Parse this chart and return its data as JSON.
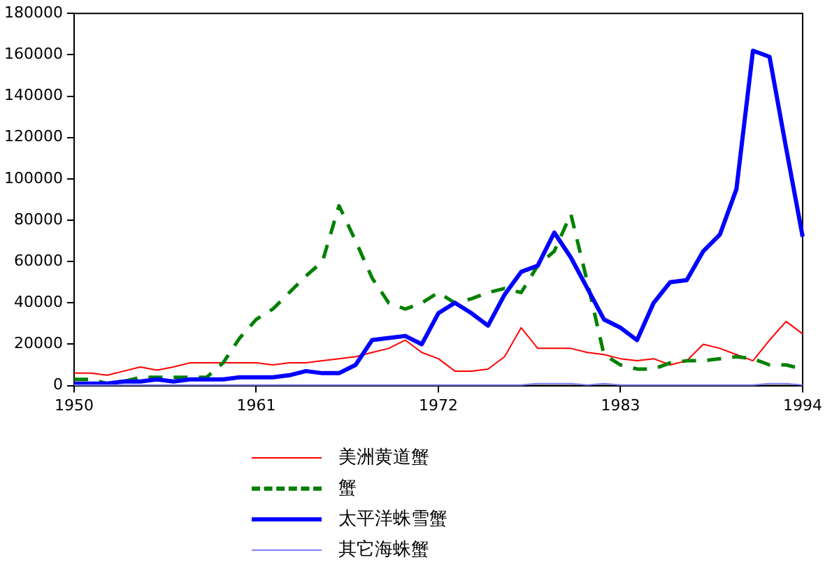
{
  "chart_data": {
    "type": "line",
    "x": [
      1950,
      1951,
      1952,
      1953,
      1954,
      1955,
      1956,
      1957,
      1958,
      1959,
      1960,
      1961,
      1962,
      1963,
      1964,
      1965,
      1966,
      1967,
      1968,
      1969,
      1970,
      1971,
      1972,
      1973,
      1974,
      1975,
      1976,
      1977,
      1978,
      1979,
      1980,
      1981,
      1982,
      1983,
      1984,
      1985,
      1986,
      1987,
      1988,
      1989,
      1990,
      1991,
      1992,
      1993,
      1994
    ],
    "series": [
      {
        "name": "美洲黄道蟹",
        "color": "#ff0000",
        "line_style": "solid",
        "values": [
          6000,
          6000,
          5000,
          7000,
          9000,
          7500,
          9000,
          11000,
          11000,
          11000,
          11000,
          11000,
          10000,
          11000,
          11000,
          12000,
          13000,
          14000,
          16000,
          18000,
          22000,
          16000,
          13000,
          7000,
          7000,
          8000,
          14000,
          28000,
          18000,
          18000,
          18000,
          16000,
          15000,
          13000,
          12000,
          13000,
          10000,
          12000,
          20000,
          18000,
          15000,
          12000,
          22000,
          31000,
          25000
        ]
      },
      {
        "name": "蟹",
        "color": "#008000",
        "line_style": "dashed",
        "values": [
          3000,
          3000,
          1000,
          2000,
          4000,
          4000,
          4000,
          4000,
          4000,
          11000,
          23000,
          32000,
          37000,
          45000,
          53000,
          60000,
          87000,
          70000,
          52000,
          40000,
          37000,
          40000,
          45000,
          40000,
          42000,
          45000,
          47000,
          45000,
          58000,
          65000,
          83000,
          50000,
          15000,
          10000,
          8000,
          8000,
          11000,
          12000,
          12000,
          13000,
          14000,
          13000,
          10000,
          10000,
          8000
        ]
      },
      {
        "name": "太平洋蛛雪蟹",
        "color": "#0000ff",
        "line_style": "solid",
        "values": [
          1000,
          1000,
          1000,
          2000,
          2000,
          3000,
          2000,
          3000,
          3000,
          3000,
          4000,
          4000,
          4000,
          5000,
          7000,
          6000,
          6000,
          10000,
          22000,
          23000,
          24000,
          20000,
          35000,
          40000,
          35000,
          29000,
          44000,
          55000,
          58000,
          74000,
          62000,
          47000,
          32000,
          28000,
          22000,
          40000,
          50000,
          51000,
          65000,
          73000,
          95000,
          162000,
          159000,
          115000,
          72000
        ]
      },
      {
        "name": "其它海蛛蟹",
        "color": "#8080ff",
        "line_style": "solid",
        "values": [
          300,
          300,
          300,
          300,
          300,
          300,
          300,
          300,
          300,
          300,
          300,
          300,
          300,
          300,
          300,
          300,
          300,
          300,
          300,
          300,
          300,
          300,
          300,
          300,
          300,
          300,
          300,
          300,
          1000,
          1000,
          1000,
          300,
          1000,
          300,
          300,
          300,
          300,
          300,
          300,
          300,
          300,
          300,
          1000,
          1000,
          300
        ]
      }
    ],
    "xlim": [
      1950,
      1994
    ],
    "xticks": [
      1950,
      1961,
      1972,
      1983,
      1994
    ],
    "ylim": [
      0,
      180000
    ],
    "yticks": [
      0,
      20000,
      40000,
      60000,
      80000,
      100000,
      120000,
      140000,
      160000,
      180000
    ],
    "grid": false,
    "legend": "bottom left",
    "marker": "none"
  }
}
